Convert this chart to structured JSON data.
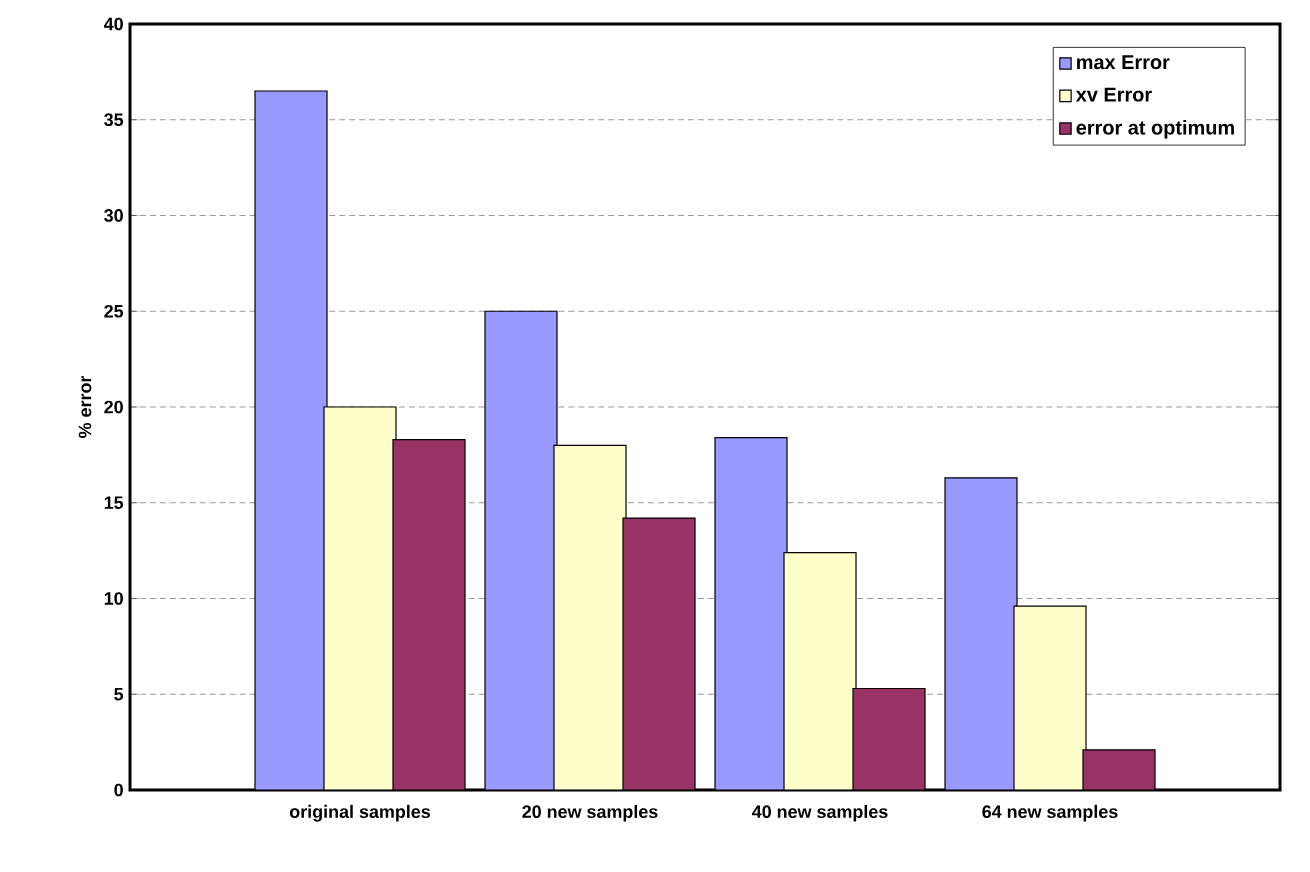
{
  "chart_data": {
    "type": "bar",
    "ylabel": "% error",
    "categories": [
      "original samples",
      "20 new samples",
      "40 new samples",
      "64 new samples"
    ],
    "series": [
      {
        "name": "max Error",
        "color": "#9999ff",
        "values": [
          36.5,
          25.0,
          18.4,
          16.3
        ]
      },
      {
        "name": "xv Error",
        "color": "#ffffcc",
        "values": [
          20.0,
          18.0,
          12.4,
          9.6
        ]
      },
      {
        "name": "error at optimum",
        "color": "#993366",
        "values": [
          18.3,
          14.2,
          5.3,
          2.1
        ]
      }
    ],
    "ylim": [
      0,
      40
    ],
    "yticks": [
      0,
      5,
      10,
      15,
      20,
      25,
      30,
      35,
      40
    ],
    "grid": "y",
    "legend": "top right"
  }
}
